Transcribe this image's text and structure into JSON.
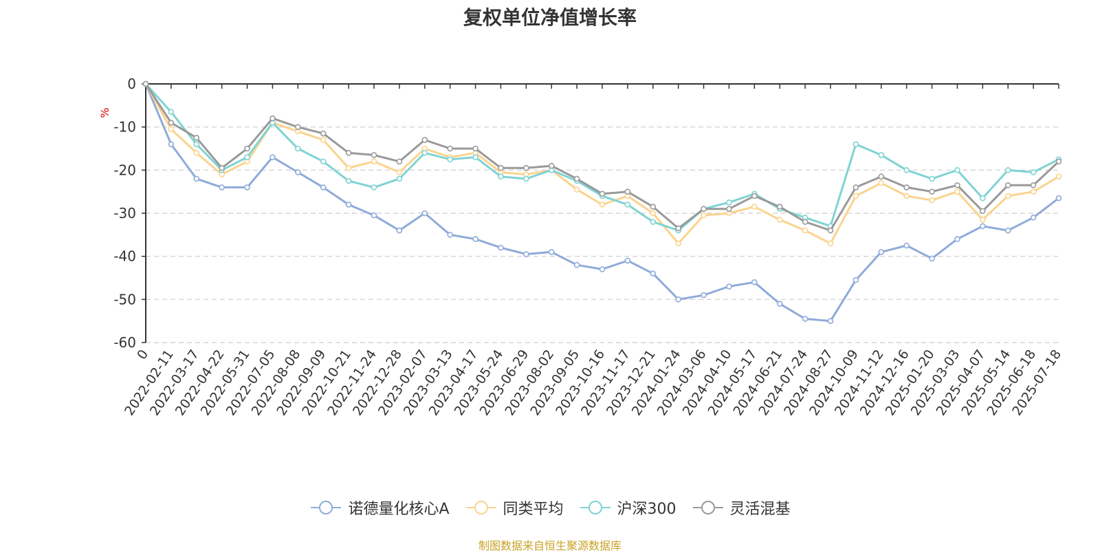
{
  "title": "复权单位净值增长率",
  "source_note": "制图数据来自恒生聚源数据库",
  "chart_data": {
    "type": "line",
    "title": "复权单位净值增长率",
    "ylabel": "%",
    "xlabel": "",
    "ylim": [
      -60,
      0
    ],
    "yticks": [
      0,
      -10,
      -20,
      -30,
      -40,
      -50,
      -60
    ],
    "grid": true,
    "legend_position": "bottom",
    "x": [
      "0",
      "2022-02-11",
      "2022-03-17",
      "2022-04-22",
      "2022-05-31",
      "2022-07-05",
      "2022-08-08",
      "2022-09-09",
      "2022-10-21",
      "2022-11-24",
      "2022-12-28",
      "2023-02-07",
      "2023-03-13",
      "2023-04-17",
      "2023-05-24",
      "2023-06-29",
      "2023-08-02",
      "2023-09-05",
      "2023-10-16",
      "2023-11-17",
      "2023-12-21",
      "2024-01-24",
      "2024-03-06",
      "2024-04-10",
      "2024-05-17",
      "2024-06-21",
      "2024-07-24",
      "2024-08-27",
      "2024-10-09",
      "2024-11-12",
      "2024-12-16",
      "2025-01-20",
      "2025-03-03",
      "2025-04-07",
      "2025-05-14",
      "2025-06-18",
      "2025-07-18"
    ],
    "series": [
      {
        "name": "诺德量化核心A",
        "color": "#8eabd9",
        "values": [
          0,
          -14,
          -22,
          -24,
          -24,
          -17,
          -20.5,
          -24,
          -28,
          -30.5,
          -34,
          -30,
          -35,
          -36,
          -38,
          -39.5,
          -39,
          -42,
          -43,
          -41,
          -44,
          -50,
          -49,
          -47,
          -46,
          -51,
          -54.5,
          -55,
          -45.5,
          -39,
          -37.5,
          -40.5,
          -36,
          -33,
          -34,
          -31,
          -26.5
        ]
      },
      {
        "name": "同类平均",
        "color": "#fbd38d",
        "values": [
          0,
          -10.5,
          -16,
          -21,
          -18,
          -9,
          -11,
          -13,
          -19.5,
          -18,
          -20.5,
          -15,
          -17,
          -16,
          -20.5,
          -21,
          -20,
          -24.5,
          -28,
          -26,
          -30,
          -37,
          -30.5,
          -30,
          -28.5,
          -31.5,
          -34,
          -37,
          -26,
          -23,
          -26,
          -27,
          -25,
          -31.5,
          -26,
          -25,
          -21.5
        ]
      },
      {
        "name": "沪深300",
        "color": "#7fd3d3",
        "values": [
          0,
          -6.5,
          -14,
          -20,
          -17,
          -9,
          -15,
          -18,
          -22.5,
          -24,
          -22,
          -16,
          -17.5,
          -17,
          -21.5,
          -22,
          -20,
          -22.5,
          -26,
          -28,
          -32,
          -34,
          -29,
          -27.5,
          -25.5,
          -29,
          -31,
          -33,
          -14,
          -16.5,
          -20,
          -22,
          -20,
          -26.5,
          -20,
          -20.5,
          -17.5
        ]
      },
      {
        "name": "灵活混基",
        "color": "#999999",
        "values": [
          0,
          -9,
          -12.5,
          -19.5,
          -15,
          -8,
          -10,
          -11.5,
          -16,
          -16.5,
          -18,
          -13,
          -15,
          -15,
          -19.5,
          -19.5,
          -19,
          -22,
          -25.5,
          -25,
          -28.5,
          -33.5,
          -29,
          -29,
          -26,
          -28.5,
          -32,
          -34,
          -24,
          -21.5,
          -24,
          -25,
          -23.5,
          -29.5,
          -23.5,
          -23.5,
          -18
        ]
      }
    ]
  }
}
